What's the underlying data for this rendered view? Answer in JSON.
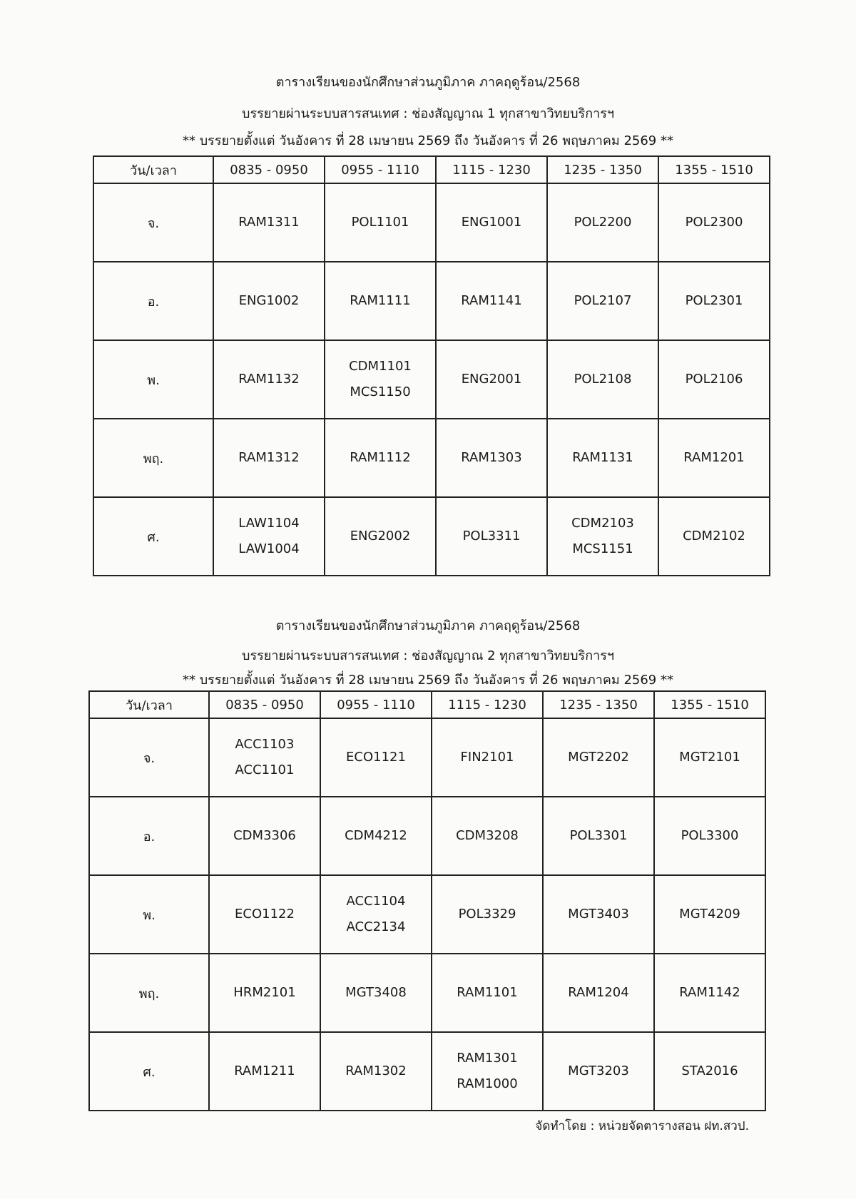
{
  "tables": [
    {
      "title": "ตารางเรียนของนักศึกษาส่วนภูมิภาค  ภาคฤดูร้อน/2568",
      "subtitle": "บรรยายผ่านระบบสารสนเทศ : ช่องสัญญาณ 1 ทุกสาขาวิทยบริการฯ",
      "dates": "**  บรรยายตั้งแต่ วันอังคาร ที่ 28 เมษายน 2569 ถึง วันอังคาร ที่ 26 พฤษภาคม 2569 **",
      "headers": [
        "วัน/เวลา",
        "0835 - 0950",
        "0955 - 1110",
        "1115 - 1230",
        "1235 - 1350",
        "1355 - 1510"
      ],
      "rows": [
        {
          "day": "จ.",
          "cells": [
            [
              "RAM1311"
            ],
            [
              "POL1101"
            ],
            [
              "ENG1001"
            ],
            [
              "POL2200"
            ],
            [
              "POL2300"
            ]
          ]
        },
        {
          "day": "อ.",
          "cells": [
            [
              "ENG1002"
            ],
            [
              "RAM1111"
            ],
            [
              "RAM1141"
            ],
            [
              "POL2107"
            ],
            [
              "POL2301"
            ]
          ]
        },
        {
          "day": "พ.",
          "cells": [
            [
              "RAM1132"
            ],
            [
              "CDM1101",
              "MCS1150"
            ],
            [
              "ENG2001"
            ],
            [
              "POL2108"
            ],
            [
              "POL2106"
            ]
          ]
        },
        {
          "day": "พฤ.",
          "cells": [
            [
              "RAM1312"
            ],
            [
              "RAM1112"
            ],
            [
              "RAM1303"
            ],
            [
              "RAM1131"
            ],
            [
              "RAM1201"
            ]
          ]
        },
        {
          "day": "ศ.",
          "cells": [
            [
              "LAW1104",
              "LAW1004"
            ],
            [
              "ENG2002"
            ],
            [
              "POL3311"
            ],
            [
              "CDM2103",
              "MCS1151"
            ],
            [
              "CDM2102"
            ]
          ]
        }
      ]
    },
    {
      "title": "ตารางเรียนของนักศึกษาส่วนภูมิภาค  ภาคฤดูร้อน/2568",
      "subtitle": "บรรยายผ่านระบบสารสนเทศ : ช่องสัญญาณ 2 ทุกสาขาวิทยบริการฯ",
      "dates": "**  บรรยายตั้งแต่ วันอังคาร ที่ 28 เมษายน 2569 ถึง วันอังคาร ที่ 26 พฤษภาคม 2569 **",
      "headers": [
        "วัน/เวลา",
        "0835 - 0950",
        "0955 - 1110",
        "1115 - 1230",
        "1235 - 1350",
        "1355 - 1510"
      ],
      "rows": [
        {
          "day": "จ.",
          "cells": [
            [
              "ACC1103",
              "ACC1101"
            ],
            [
              "ECO1121"
            ],
            [
              "FIN2101"
            ],
            [
              "MGT2202"
            ],
            [
              "MGT2101"
            ]
          ]
        },
        {
          "day": "อ.",
          "cells": [
            [
              "CDM3306"
            ],
            [
              "CDM4212"
            ],
            [
              "CDM3208"
            ],
            [
              "POL3301"
            ],
            [
              "POL3300"
            ]
          ]
        },
        {
          "day": "พ.",
          "cells": [
            [
              "ECO1122"
            ],
            [
              "ACC1104",
              "ACC2134"
            ],
            [
              "POL3329"
            ],
            [
              "MGT3403"
            ],
            [
              "MGT4209"
            ]
          ]
        },
        {
          "day": "พฤ.",
          "cells": [
            [
              "HRM2101"
            ],
            [
              "MGT3408"
            ],
            [
              "RAM1101"
            ],
            [
              "RAM1204"
            ],
            [
              "RAM1142"
            ]
          ]
        },
        {
          "day": "ศ.",
          "cells": [
            [
              "RAM1211"
            ],
            [
              "RAM1302"
            ],
            [
              "RAM1301",
              "RAM1000"
            ],
            [
              "MGT3203"
            ],
            [
              "STA2016"
            ]
          ]
        }
      ]
    }
  ],
  "footer": "จัดทำโดย : หน่วยจัดตารางสอน ฝท.สวป."
}
